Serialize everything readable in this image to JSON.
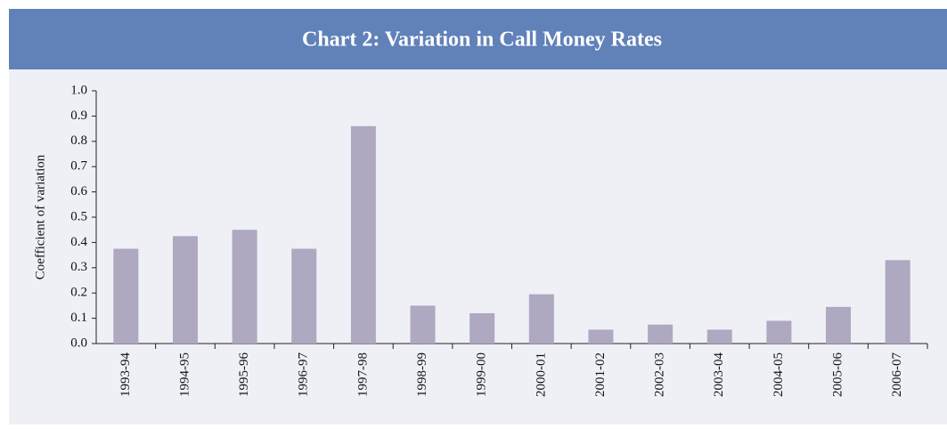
{
  "chart_data": {
    "type": "bar",
    "title": "Chart 2: Variation in Call Money Rates",
    "y_label": "Coefficient of variation",
    "categories": [
      "1993-94",
      "1994-95",
      "1995-96",
      "1996-97",
      "1997-98",
      "1998-99",
      "1999-00",
      "2000-01",
      "2001-02",
      "2002-03",
      "2003-04",
      "2004-05",
      "2005-06",
      "2006-07"
    ],
    "values": [
      0.375,
      0.425,
      0.45,
      0.375,
      0.86,
      0.15,
      0.12,
      0.195,
      0.055,
      0.075,
      0.055,
      0.09,
      0.145,
      0.33
    ],
    "color": "#aea8c1",
    "ylim": [
      0,
      1
    ],
    "yticks": [
      {
        "value": 0,
        "label": "0.0"
      },
      0.1,
      0.2,
      0.3,
      0.4,
      0.5,
      0.6,
      0.7,
      0.8,
      0.9,
      {
        "value": 1,
        "label": "1.0"
      }
    ],
    "grid": false
  }
}
